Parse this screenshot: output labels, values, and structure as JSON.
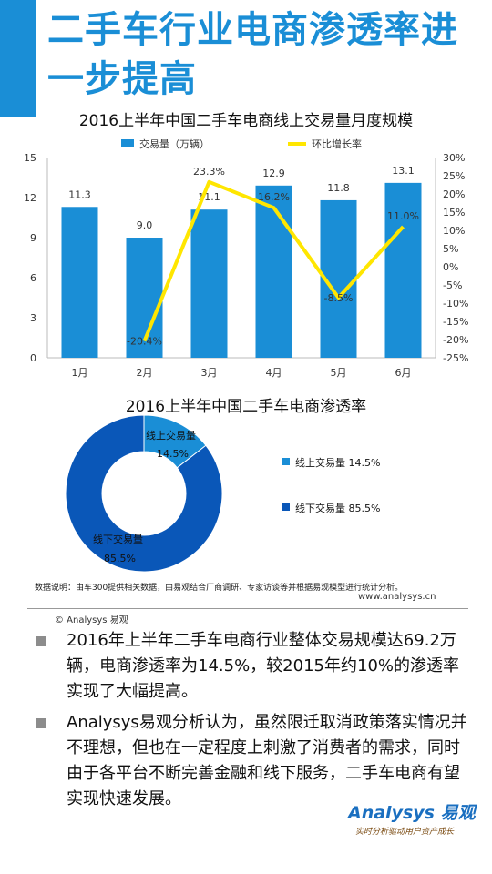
{
  "page": {
    "title_line1": "二手车行业电商渗透率进",
    "title_line2": "一步提高",
    "data_note": "数据说明：由车300提供相关数据，由易观结合厂商调研、专家访谈等并根据易观模型进行统计分析。",
    "footer_left": "© Analysys 易观",
    "footer_right": "www.analysys.cn",
    "bullets": [
      "2016年上半年二手车电商行业整体交易规模达69.2万辆，电商渗透率为14.5%，较2015年约10%的渗透率实现了大幅提高。",
      "Analysys易观分析认为，虽然限迁取消政策落实情况并不理想，但也在一定程度上刺激了消费者的需求，同时由于各平台不断完善金融和线下服务，二手车电商有望实现快速发展。"
    ],
    "logo_text": "Analysys 易观",
    "logo_tagline": "实时分析驱动用户资产成长",
    "colors": {
      "accent": "#1a8ed6",
      "bar": "#1a8ed6",
      "line": "#ffe600",
      "donut_online": "#1a8ed6",
      "donut_offline": "#0a57b8"
    }
  },
  "chart_data": [
    {
      "type": "bar",
      "title": "2016上半年中国二手车电商线上交易量月度规模",
      "categories": [
        "1月",
        "2月",
        "3月",
        "4月",
        "5月",
        "6月"
      ],
      "series": [
        {
          "name": "交易量（万辆）",
          "type": "bar",
          "axis": "left",
          "values": [
            11.3,
            9.0,
            11.1,
            12.9,
            11.8,
            13.1
          ],
          "labels": [
            "11.3",
            "9.0",
            "11.1",
            "12.9",
            "11.8",
            "13.1"
          ]
        },
        {
          "name": "环比增长率",
          "type": "line",
          "axis": "right",
          "values": [
            null,
            -20.4,
            23.3,
            16.2,
            -8.5,
            11.0
          ],
          "labels": [
            "",
            "-20.4%",
            "23.3%",
            "16.2%",
            "-8.5%",
            "11.0%"
          ]
        }
      ],
      "ylim": [
        0,
        15
      ],
      "yticks": [
        "0",
        "3",
        "6",
        "9",
        "12",
        "15"
      ],
      "y2lim": [
        -25,
        30
      ],
      "y2ticks": [
        "-25%",
        "-20%",
        "-15%",
        "-10%",
        "-5%",
        "0%",
        "5%",
        "10%",
        "15%",
        "20%",
        "25%",
        "30%"
      ],
      "legend": "top"
    },
    {
      "type": "pie",
      "title": "2016上半年中国二手车电商渗透率",
      "labels": [
        "线上交易量",
        "线下交易量"
      ],
      "values": [
        14.5,
        85.5
      ],
      "value_labels": [
        "14.5%",
        "85.5%"
      ],
      "legend_labels": [
        "线上交易量  14.5%",
        "线下交易量  85.5%"
      ],
      "legend": "right"
    }
  ]
}
